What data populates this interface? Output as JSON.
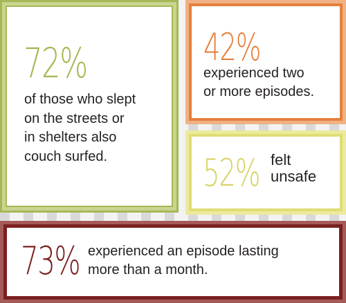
{
  "colors": {
    "green": "#a5b856",
    "orange": "#e5803d",
    "yellow": "#dfdd74",
    "maroon": "#7a2020",
    "text": "#231f20"
  },
  "stats": {
    "couch_surfed": {
      "percent": "72%",
      "text": "of those who slept\non the streets or\nin shelters also\ncouch surfed."
    },
    "two_or_more": {
      "percent": "42%",
      "text": "experienced two\nor more episodes."
    },
    "felt_unsafe": {
      "percent": "52%",
      "text": "felt\nunsafe"
    },
    "over_a_month": {
      "percent": "73%",
      "text": "experienced an episode lasting\nmore than a month."
    }
  }
}
